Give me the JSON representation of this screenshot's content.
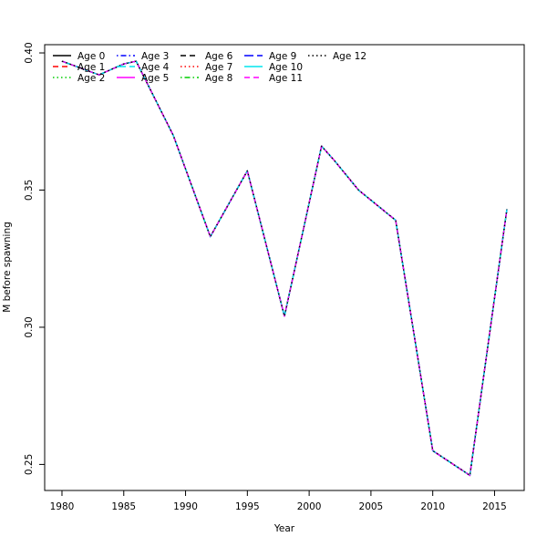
{
  "chart_data": {
    "type": "line",
    "title": "",
    "xlabel": "Year",
    "ylabel": "M before spawning",
    "xlim": [
      1978.6,
      2017.4
    ],
    "ylim": [
      0.2405,
      0.403
    ],
    "x_ticks": [
      1980,
      1985,
      1990,
      1995,
      2000,
      2005,
      2010,
      2015
    ],
    "y_ticks": [
      0.25,
      0.3,
      0.35,
      0.4
    ],
    "y_tick_labels": [
      "0.25",
      "0.30",
      "0.35",
      "0.40"
    ],
    "grid": false,
    "legend_position": "top-left",
    "x": [
      1980,
      1983,
      1985,
      1986,
      1989,
      1992,
      1995,
      1998,
      2001,
      2002,
      2004,
      2007,
      2010,
      2013,
      2016
    ],
    "series": [
      {
        "name": "Age 0",
        "color": "#000000",
        "dash": "solid",
        "values": [
          0.397,
          0.392,
          0.396,
          0.397,
          0.37,
          0.333,
          0.357,
          0.304,
          0.366,
          0.361,
          0.35,
          0.339,
          0.255,
          0.246,
          0.343
        ]
      },
      {
        "name": "Age 1",
        "color": "#ff0000",
        "dash": "dashed",
        "values": [
          0.397,
          0.392,
          0.396,
          0.397,
          0.37,
          0.333,
          0.357,
          0.304,
          0.366,
          0.361,
          0.35,
          0.339,
          0.255,
          0.246,
          0.343
        ]
      },
      {
        "name": "Age 2",
        "color": "#00cd00",
        "dash": "dotted",
        "values": [
          0.397,
          0.392,
          0.396,
          0.397,
          0.37,
          0.333,
          0.357,
          0.304,
          0.366,
          0.361,
          0.35,
          0.339,
          0.255,
          0.246,
          0.343
        ]
      },
      {
        "name": "Age 3",
        "color": "#0000ff",
        "dash": "dotdash",
        "values": [
          0.397,
          0.392,
          0.396,
          0.397,
          0.37,
          0.333,
          0.357,
          0.304,
          0.366,
          0.361,
          0.35,
          0.339,
          0.255,
          0.246,
          0.343
        ]
      },
      {
        "name": "Age 4",
        "color": "#00e5ee",
        "dash": "longdash",
        "values": [
          0.397,
          0.392,
          0.396,
          0.397,
          0.37,
          0.333,
          0.357,
          0.304,
          0.366,
          0.361,
          0.35,
          0.339,
          0.255,
          0.246,
          0.343
        ]
      },
      {
        "name": "Age 5",
        "color": "#ff00ff",
        "dash": "solid",
        "values": [
          0.397,
          0.392,
          0.396,
          0.397,
          0.37,
          0.333,
          0.357,
          0.304,
          0.366,
          0.361,
          0.35,
          0.339,
          0.255,
          0.246,
          0.343
        ]
      },
      {
        "name": "Age 6",
        "color": "#000000",
        "dash": "dashed",
        "values": [
          0.397,
          0.392,
          0.396,
          0.397,
          0.37,
          0.333,
          0.357,
          0.304,
          0.366,
          0.361,
          0.35,
          0.339,
          0.255,
          0.246,
          0.343
        ]
      },
      {
        "name": "Age 7",
        "color": "#ff0000",
        "dash": "dotted",
        "values": [
          0.397,
          0.392,
          0.396,
          0.397,
          0.37,
          0.333,
          0.357,
          0.304,
          0.366,
          0.361,
          0.35,
          0.339,
          0.255,
          0.246,
          0.343
        ]
      },
      {
        "name": "Age 8",
        "color": "#00cd00",
        "dash": "dotdash",
        "values": [
          0.397,
          0.392,
          0.396,
          0.397,
          0.37,
          0.333,
          0.357,
          0.304,
          0.366,
          0.361,
          0.35,
          0.339,
          0.255,
          0.246,
          0.343
        ]
      },
      {
        "name": "Age 9",
        "color": "#0000ff",
        "dash": "longdash",
        "values": [
          0.397,
          0.392,
          0.396,
          0.397,
          0.37,
          0.333,
          0.357,
          0.304,
          0.366,
          0.361,
          0.35,
          0.339,
          0.255,
          0.246,
          0.343
        ]
      },
      {
        "name": "Age 10",
        "color": "#00e5ee",
        "dash": "solid",
        "values": [
          0.397,
          0.392,
          0.396,
          0.397,
          0.37,
          0.333,
          0.357,
          0.304,
          0.366,
          0.361,
          0.35,
          0.339,
          0.255,
          0.246,
          0.343
        ]
      },
      {
        "name": "Age 11",
        "color": "#ff00ff",
        "dash": "dashed",
        "values": [
          0.397,
          0.392,
          0.396,
          0.397,
          0.37,
          0.333,
          0.357,
          0.304,
          0.366,
          0.361,
          0.35,
          0.339,
          0.255,
          0.246,
          0.343
        ]
      },
      {
        "name": "Age 12",
        "color": "#000000",
        "dash": "dotted",
        "values": [
          0.397,
          0.392,
          0.396,
          0.397,
          0.37,
          0.333,
          0.357,
          0.304,
          0.366,
          0.361,
          0.35,
          0.339,
          0.255,
          0.246,
          0.343
        ]
      }
    ]
  }
}
